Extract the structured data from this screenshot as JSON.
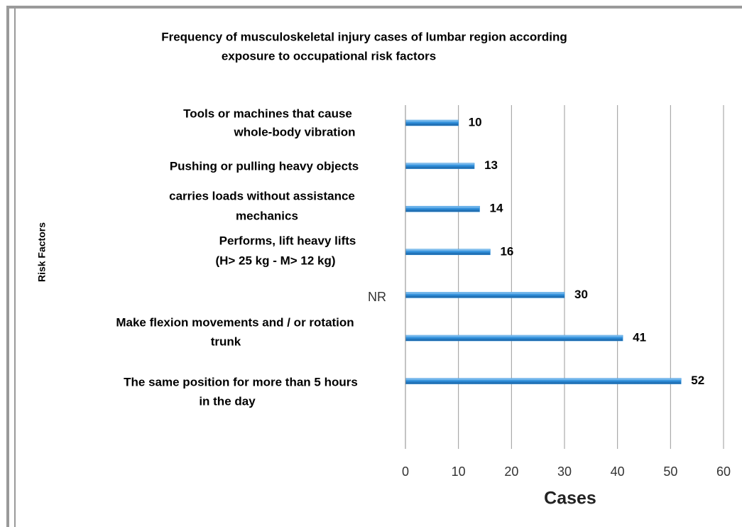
{
  "chart_data": {
    "type": "barh",
    "title": [
      "Frequency of musculoskeletal injury cases of lumbar region according",
      "exposure to occupational risk factors"
    ],
    "y_label": "Risk Factors",
    "x_label": "Cases",
    "categories": [
      [
        "Tools or machines that cause",
        "whole-body vibration"
      ],
      [
        "Pushing or pulling heavy objects"
      ],
      [
        "carries loads without assistance",
        "mechanics"
      ],
      [
        "Performs, lift heavy lifts",
        "(H> 25 kg - M> 12 kg)"
      ],
      [
        "NR"
      ],
      [
        "Make flexion movements and / or rotation",
        "trunk"
      ],
      [
        "The same position for more than 5 hours",
        "in the day"
      ]
    ],
    "values": [
      10,
      13,
      14,
      16,
      30,
      41,
      52
    ],
    "color": "#2e8fdc",
    "xlim": [
      0,
      60
    ],
    "xticks": [
      0,
      10,
      20,
      30,
      40,
      50,
      60
    ],
    "grid": true
  }
}
